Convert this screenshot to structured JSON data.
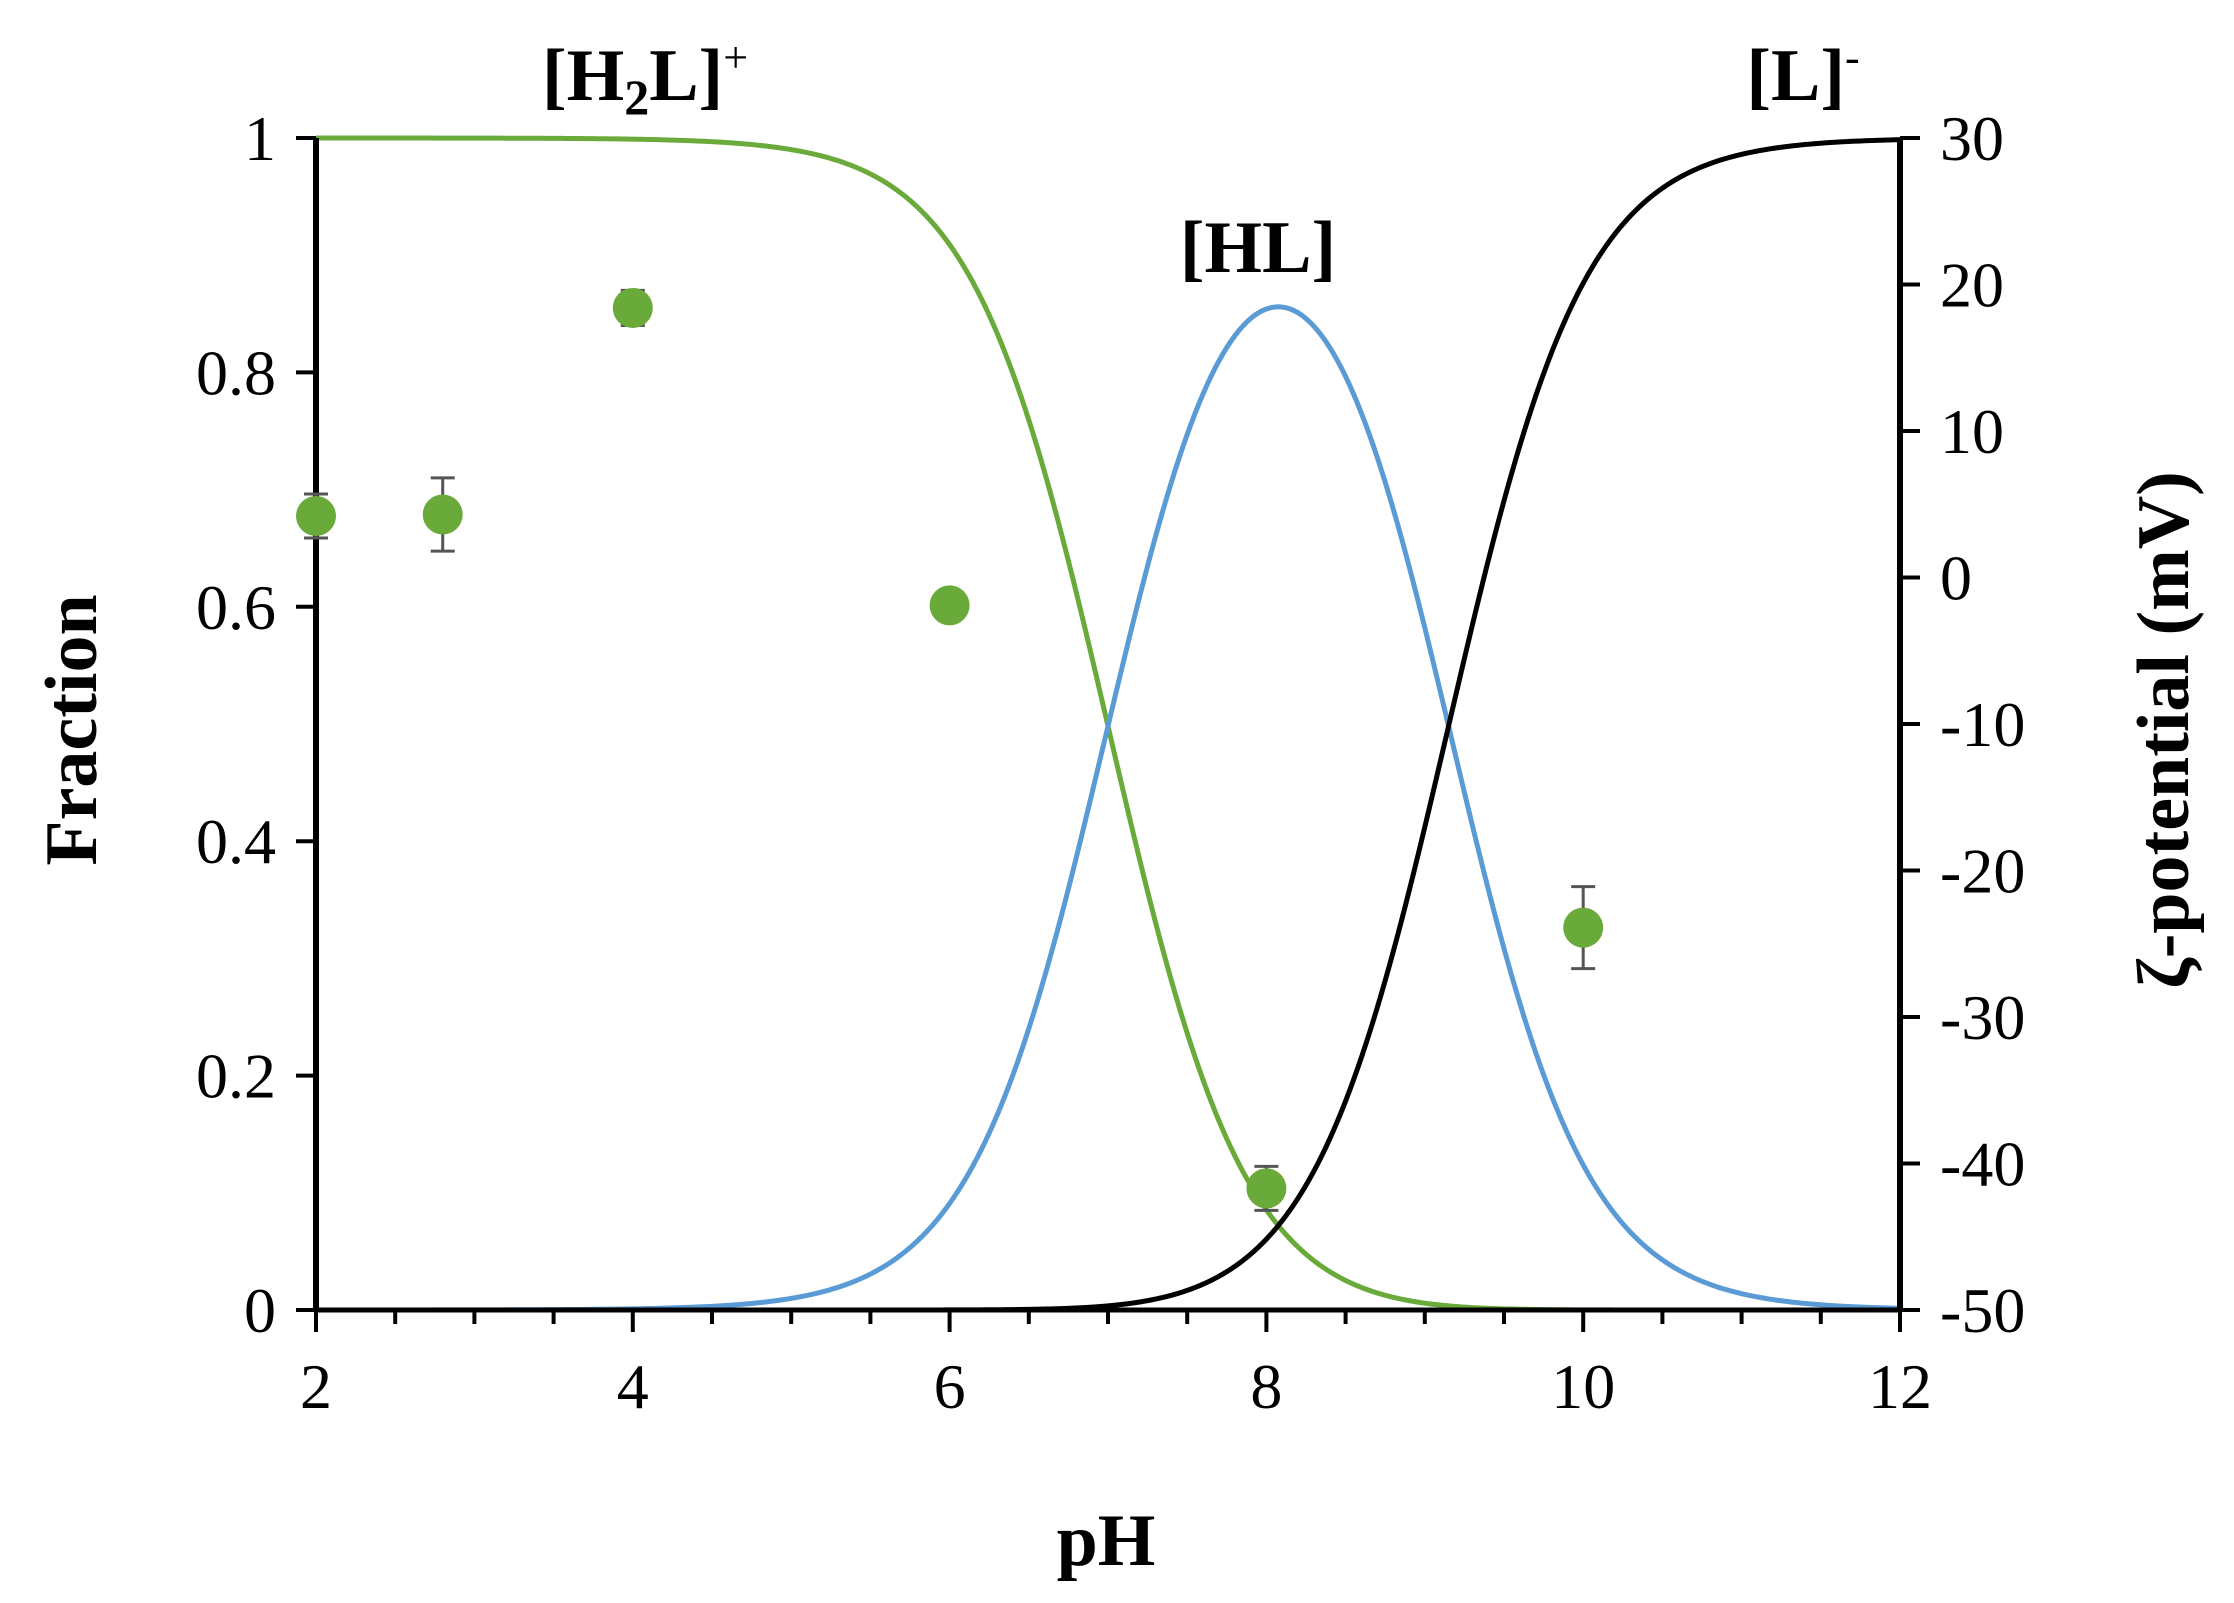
{
  "chart_data": {
    "type": "line",
    "xlabel": "pH",
    "ylabel": "Fraction",
    "y2label": "ζ-potential (mV)",
    "xlim": [
      2,
      12
    ],
    "ylim": [
      0,
      1
    ],
    "y2lim": [
      -50,
      30
    ],
    "x_ticks": [
      "2",
      "4",
      "6",
      "8",
      "10",
      "12"
    ],
    "y_ticks": [
      "0",
      "0.2",
      "0.4",
      "0.6",
      "0.8",
      "1"
    ],
    "y2_ticks": [
      "-50",
      "-40",
      "-30",
      "-20",
      "-10",
      "0",
      "10",
      "20",
      "30"
    ],
    "pKa": [
      7.0,
      9.15
    ],
    "series": [
      {
        "name": "[H2L]+",
        "label": {
          "main": "[H",
          "sub": "2",
          "tail": "L]",
          "sup": "+"
        },
        "color": "#6aaa3a",
        "x": [
          2,
          4,
          5,
          5.5,
          6,
          6.5,
          7,
          7.5,
          8,
          8.5,
          9,
          9.5,
          10,
          12
        ],
        "y": [
          1.0,
          0.999,
          0.99,
          0.969,
          0.909,
          0.76,
          0.5,
          0.24,
          0.09,
          0.029,
          0.008,
          0.002,
          0.0,
          0.0
        ]
      },
      {
        "name": "[HL]",
        "label": {
          "main": "[HL]",
          "sub": "",
          "tail": "",
          "sup": ""
        },
        "color": "#5b9bd5",
        "x": [
          2,
          4,
          5,
          5.5,
          6,
          6.5,
          7,
          7.5,
          8,
          8.5,
          9,
          9.5,
          10,
          10.5,
          11,
          12
        ],
        "y": [
          0.0,
          0.001,
          0.01,
          0.031,
          0.09,
          0.237,
          0.494,
          0.74,
          0.846,
          0.74,
          0.49,
          0.23,
          0.066,
          0.016,
          0.005,
          0.0
        ]
      },
      {
        "name": "[L]-",
        "label": {
          "main": "[L]",
          "sub": "",
          "tail": "",
          "sup": "-"
        },
        "color": "#000000",
        "x": [
          2,
          6,
          7,
          7.5,
          8,
          8.5,
          9,
          9.5,
          10,
          10.5,
          11,
          11.5,
          12
        ],
        "y": [
          0.0,
          0.0,
          0.007,
          0.021,
          0.064,
          0.183,
          0.414,
          0.69,
          0.876,
          0.96,
          0.986,
          0.996,
          1.0
        ]
      }
    ],
    "points": {
      "name": "ζ-potential",
      "color": "#6aaa3a",
      "axis": "right",
      "x": [
        2,
        2.8,
        4,
        6,
        8,
        10
      ],
      "y": [
        4.2,
        4.3,
        18.4,
        -1.9,
        -41.7,
        -23.9
      ],
      "err": [
        1.5,
        2.5,
        1.2,
        0.8,
        1.5,
        2.8
      ]
    }
  }
}
